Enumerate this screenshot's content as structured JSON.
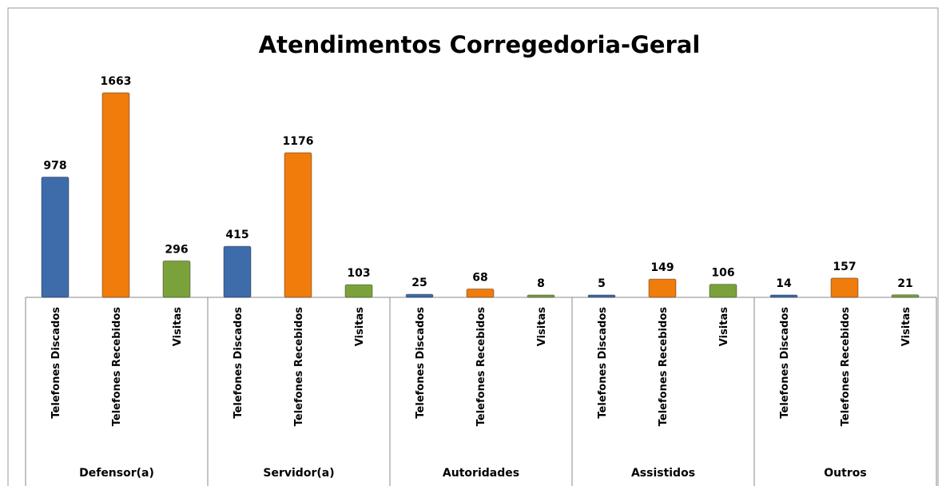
{
  "chart_data": {
    "type": "grouped_bar",
    "title": "Atendimentos Corregedoria-Geral",
    "categories": [
      "Defensor(a)",
      "Servidor(a)",
      "Autoridades",
      "Assistidos",
      "Outros"
    ],
    "series": [
      {
        "name": "Telefones Discados",
        "color": "#3e6cab",
        "values": [
          978,
          415,
          25,
          5,
          14
        ]
      },
      {
        "name": "Telefones Recebidos",
        "color": "#f07c0c",
        "values": [
          1663,
          1176,
          68,
          149,
          157
        ]
      },
      {
        "name": "Visitas",
        "color": "#7ba23a",
        "values": [
          296,
          103,
          8,
          106,
          21
        ]
      }
    ]
  }
}
